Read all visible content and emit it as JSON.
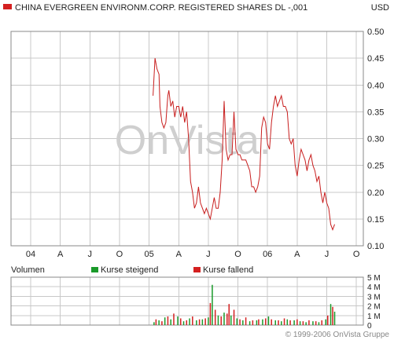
{
  "header": {
    "title": "CHINA EVERGREEN ENVIRONM.CORP. REGISTERED SHARES DL -,001",
    "currency": "USD"
  },
  "watermark": "OnVista.",
  "copyright": "© 1999-2006 OnVista Gruppe",
  "colors": {
    "price_line": "#c81e1e",
    "volume_up": "#1a9a2a",
    "volume_down": "#d42020",
    "grid": "#c8c8c8",
    "panel_border": "#888888"
  },
  "volume": {
    "title": "Volumen",
    "legend": [
      {
        "label": "Kurse steigend",
        "color": "#1a9a2a"
      },
      {
        "label": "Kurse fallend",
        "color": "#d42020"
      }
    ],
    "y_ticks": [
      "5 M",
      "4 M",
      "3 M",
      "2 M",
      "1 M",
      "0"
    ]
  },
  "chart_data": [
    {
      "type": "line",
      "title": "CHINA EVERGREEN ENVIRONM.CORP. REGISTERED SHARES DL -,001",
      "ylabel": "USD",
      "x_ticks": [
        "04",
        "A",
        "J",
        "O",
        "05",
        "A",
        "J",
        "O",
        "06",
        "A",
        "J",
        "O"
      ],
      "y_ticks": [
        "0.50",
        "0.45",
        "0.40",
        "0.35",
        "0.30",
        "0.25",
        "0.20",
        "0.15",
        "0.10"
      ],
      "ylim": [
        0.1,
        0.5
      ],
      "xlim_months": [
        0,
        35.2
      ],
      "grid": true,
      "series": [
        {
          "values": [
            [
              12.4,
              0.38
            ],
            [
              12.6,
              0.45
            ],
            [
              12.8,
              0.43
            ],
            [
              13.0,
              0.42
            ],
            [
              13.1,
              0.36
            ],
            [
              13.3,
              0.33
            ],
            [
              13.5,
              0.32
            ],
            [
              13.7,
              0.33
            ],
            [
              13.9,
              0.38
            ],
            [
              14.0,
              0.39
            ],
            [
              14.2,
              0.36
            ],
            [
              14.4,
              0.37
            ],
            [
              14.6,
              0.34
            ],
            [
              14.8,
              0.36
            ],
            [
              15.0,
              0.36
            ],
            [
              15.2,
              0.34
            ],
            [
              15.4,
              0.36
            ],
            [
              15.6,
              0.33
            ],
            [
              15.8,
              0.35
            ],
            [
              16.0,
              0.3
            ],
            [
              16.2,
              0.22
            ],
            [
              16.4,
              0.2
            ],
            [
              16.6,
              0.17
            ],
            [
              16.8,
              0.18
            ],
            [
              17.0,
              0.21
            ],
            [
              17.2,
              0.18
            ],
            [
              17.4,
              0.17
            ],
            [
              17.6,
              0.16
            ],
            [
              17.8,
              0.17
            ],
            [
              18.0,
              0.16
            ],
            [
              18.2,
              0.15
            ],
            [
              18.4,
              0.17
            ],
            [
              18.6,
              0.19
            ],
            [
              18.8,
              0.17
            ],
            [
              19.0,
              0.17
            ],
            [
              19.2,
              0.2
            ],
            [
              19.4,
              0.26
            ],
            [
              19.6,
              0.37
            ],
            [
              19.8,
              0.28
            ],
            [
              20.0,
              0.26
            ],
            [
              20.2,
              0.27
            ],
            [
              20.4,
              0.27
            ],
            [
              20.6,
              0.35
            ],
            [
              20.8,
              0.28
            ],
            [
              21.0,
              0.27
            ],
            [
              21.2,
              0.27
            ],
            [
              21.4,
              0.26
            ],
            [
              21.6,
              0.26
            ],
            [
              21.8,
              0.26
            ],
            [
              22.0,
              0.25
            ],
            [
              22.2,
              0.24
            ],
            [
              22.4,
              0.21
            ],
            [
              22.6,
              0.21
            ],
            [
              22.8,
              0.2
            ],
            [
              23.0,
              0.21
            ],
            [
              23.2,
              0.23
            ],
            [
              23.4,
              0.32
            ],
            [
              23.6,
              0.34
            ],
            [
              23.8,
              0.33
            ],
            [
              24.0,
              0.29
            ],
            [
              24.2,
              0.28
            ],
            [
              24.4,
              0.33
            ],
            [
              24.6,
              0.36
            ],
            [
              24.8,
              0.38
            ],
            [
              25.0,
              0.36
            ],
            [
              25.2,
              0.37
            ],
            [
              25.4,
              0.38
            ],
            [
              25.6,
              0.36
            ],
            [
              25.8,
              0.36
            ],
            [
              26.0,
              0.35
            ],
            [
              26.2,
              0.3
            ],
            [
              26.4,
              0.29
            ],
            [
              26.6,
              0.3
            ],
            [
              26.8,
              0.25
            ],
            [
              27.0,
              0.23
            ],
            [
              27.2,
              0.26
            ],
            [
              27.4,
              0.28
            ],
            [
              27.6,
              0.27
            ],
            [
              27.8,
              0.26
            ],
            [
              28.0,
              0.24
            ],
            [
              28.2,
              0.26
            ],
            [
              28.4,
              0.27
            ],
            [
              28.6,
              0.25
            ],
            [
              28.8,
              0.24
            ],
            [
              29.0,
              0.22
            ],
            [
              29.2,
              0.23
            ],
            [
              29.4,
              0.2
            ],
            [
              29.6,
              0.18
            ],
            [
              29.8,
              0.2
            ],
            [
              30.0,
              0.18
            ],
            [
              30.2,
              0.17
            ],
            [
              30.4,
              0.14
            ],
            [
              30.6,
              0.13
            ],
            [
              30.8,
              0.14
            ]
          ]
        }
      ]
    },
    {
      "type": "bar",
      "title": "Volumen",
      "ylabel": "Volumen",
      "ylim": [
        0,
        5
      ],
      "unit": "M",
      "series": [
        {
          "name": "Kurse steigend",
          "values": [
            [
              12.5,
              0.3
            ],
            [
              13.0,
              0.5
            ],
            [
              13.6,
              0.8
            ],
            [
              14.2,
              0.6
            ],
            [
              14.9,
              0.9
            ],
            [
              15.5,
              0.4
            ],
            [
              16.1,
              0.7
            ],
            [
              16.8,
              0.5
            ],
            [
              17.4,
              0.6
            ],
            [
              18.0,
              0.8
            ],
            [
              18.4,
              4.2
            ],
            [
              19.0,
              1.0
            ],
            [
              19.6,
              1.3
            ],
            [
              20.3,
              1.0
            ],
            [
              20.9,
              0.7
            ],
            [
              21.5,
              0.5
            ],
            [
              22.2,
              0.4
            ],
            [
              22.9,
              0.5
            ],
            [
              23.5,
              0.6
            ],
            [
              24.1,
              0.9
            ],
            [
              24.8,
              0.5
            ],
            [
              25.4,
              0.4
            ],
            [
              26.0,
              0.6
            ],
            [
              26.7,
              0.5
            ],
            [
              27.3,
              0.4
            ],
            [
              27.9,
              0.3
            ],
            [
              28.6,
              0.4
            ],
            [
              29.2,
              0.3
            ],
            [
              29.9,
              0.6
            ],
            [
              30.4,
              2.2
            ],
            [
              30.8,
              1.4
            ]
          ]
        },
        {
          "name": "Kurse fallend",
          "values": [
            [
              12.7,
              0.6
            ],
            [
              13.3,
              0.4
            ],
            [
              13.9,
              0.9
            ],
            [
              14.5,
              1.2
            ],
            [
              15.2,
              0.7
            ],
            [
              15.8,
              0.5
            ],
            [
              16.4,
              0.9
            ],
            [
              17.1,
              0.6
            ],
            [
              17.7,
              0.7
            ],
            [
              18.2,
              2.3
            ],
            [
              18.7,
              1.6
            ],
            [
              19.3,
              0.9
            ],
            [
              19.9,
              1.2
            ],
            [
              20.1,
              2.2
            ],
            [
              20.6,
              1.6
            ],
            [
              21.2,
              0.6
            ],
            [
              21.8,
              0.8
            ],
            [
              22.5,
              0.5
            ],
            [
              23.1,
              0.6
            ],
            [
              23.8,
              0.7
            ],
            [
              24.4,
              0.6
            ],
            [
              25.1,
              0.5
            ],
            [
              25.7,
              0.7
            ],
            [
              26.3,
              0.5
            ],
            [
              27.0,
              0.6
            ],
            [
              27.6,
              0.4
            ],
            [
              28.2,
              0.5
            ],
            [
              28.9,
              0.4
            ],
            [
              29.5,
              0.5
            ],
            [
              30.1,
              1.0
            ],
            [
              30.6,
              1.9
            ]
          ]
        }
      ]
    }
  ]
}
